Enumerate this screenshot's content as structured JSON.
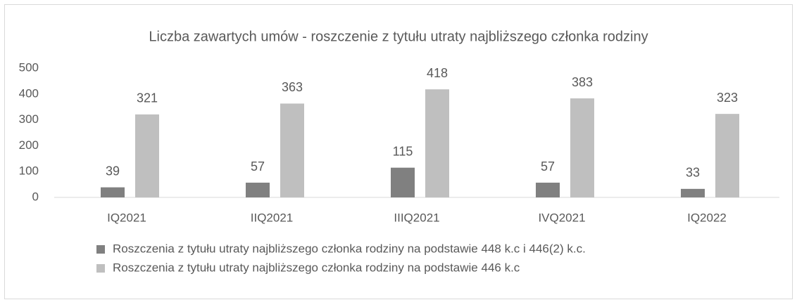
{
  "chart_data": {
    "type": "bar",
    "title": "Liczba zawartych umów - roszczenie z tytułu utraty najbliższego członka rodziny",
    "categories": [
      "IQ2021",
      "IIQ2021",
      "IIIQ2021",
      "IVQ2021",
      "IQ2022"
    ],
    "series": [
      {
        "name": "Roszczenia z tytułu utraty najbliższego członka rodziny na podstawie 448 k.c i 446(2) k.c.",
        "color": "#808080",
        "values": [
          39,
          57,
          115,
          57,
          33
        ]
      },
      {
        "name": "Roszczenia z tytułu utraty najbliższego członka rodziny na podstawie 446 k.c",
        "color": "#bfbfbf",
        "values": [
          321,
          363,
          418,
          383,
          323
        ]
      }
    ],
    "ylim": [
      0,
      500
    ],
    "yticks": [
      0,
      100,
      200,
      300,
      400,
      500
    ],
    "grid": false,
    "legend": "bottom"
  }
}
